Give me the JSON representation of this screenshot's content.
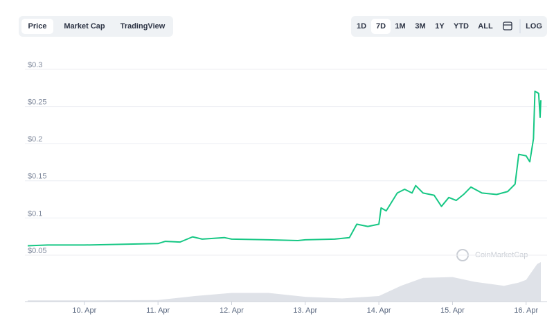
{
  "controls": {
    "tabs": [
      "Price",
      "Market Cap",
      "TradingView"
    ],
    "ranges": [
      "1D",
      "7D",
      "1M",
      "3M",
      "1Y",
      "YTD",
      "ALL"
    ],
    "log": "LOG"
  },
  "chart_data": {
    "type": "line",
    "color": "#16c784",
    "grid": true,
    "watermark": "CoinMarketCap",
    "x": [
      9.23,
      9.5,
      10.0,
      10.5,
      11.0,
      11.1,
      11.3,
      11.47,
      11.6,
      11.9,
      12.0,
      12.5,
      12.9,
      13.0,
      13.4,
      13.6,
      13.7,
      13.85,
      14.0,
      14.03,
      14.1,
      14.25,
      14.35,
      14.45,
      14.5,
      14.6,
      14.75,
      14.85,
      14.95,
      15.05,
      15.15,
      15.25,
      15.4,
      15.6,
      15.75,
      15.85,
      15.9,
      16.0,
      16.05,
      16.1,
      16.12,
      16.17,
      16.19,
      16.2
    ],
    "values": [
      0.057,
      0.058,
      0.058,
      0.059,
      0.06,
      0.063,
      0.062,
      0.069,
      0.066,
      0.068,
      0.066,
      0.065,
      0.064,
      0.065,
      0.066,
      0.068,
      0.086,
      0.083,
      0.086,
      0.108,
      0.104,
      0.128,
      0.133,
      0.128,
      0.138,
      0.128,
      0.125,
      0.11,
      0.122,
      0.118,
      0.126,
      0.136,
      0.128,
      0.126,
      0.13,
      0.14,
      0.18,
      0.178,
      0.17,
      0.201,
      0.265,
      0.262,
      0.23,
      0.253
    ],
    "xlim": [
      9.23,
      16.2
    ],
    "xticks": [
      {
        "value": 10,
        "label": "10. Apr"
      },
      {
        "value": 11,
        "label": "11. Apr"
      },
      {
        "value": 12,
        "label": "12. Apr"
      },
      {
        "value": 13,
        "label": "13. Apr"
      },
      {
        "value": 14,
        "label": "14. Apr"
      },
      {
        "value": 15,
        "label": "15. Apr"
      },
      {
        "value": 16,
        "label": "16. Apr"
      }
    ],
    "ylim": [
      0.05,
      0.3
    ],
    "yticks": [
      {
        "value": 0.05,
        "label": "$0.05"
      },
      {
        "value": 0.1,
        "label": "$0.1"
      },
      {
        "value": 0.15,
        "label": "$0.15"
      },
      {
        "value": 0.2,
        "label": "$0.2"
      },
      {
        "value": 0.25,
        "label": "$0.25"
      },
      {
        "value": 0.3,
        "label": "$0.3"
      }
    ],
    "volume": {
      "color": "#dfe2e8",
      "ylim": [
        0,
        100
      ],
      "x": [
        9.23,
        10.0,
        11.0,
        11.5,
        12.0,
        12.5,
        13.0,
        13.5,
        14.0,
        14.3,
        14.6,
        15.0,
        15.3,
        15.7,
        15.9,
        16.0,
        16.15,
        16.2
      ],
      "values": [
        3,
        3,
        4,
        14,
        22,
        22,
        12,
        8,
        14,
        40,
        60,
        62,
        50,
        40,
        48,
        55,
        95,
        100
      ]
    }
  }
}
